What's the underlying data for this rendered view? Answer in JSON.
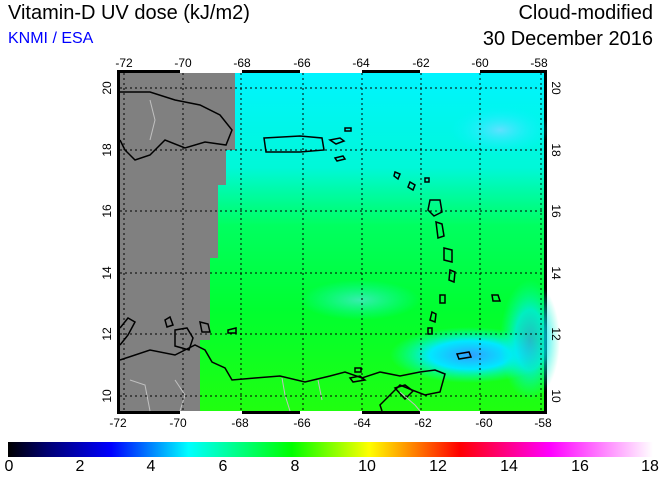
{
  "header": {
    "title": "Vitamin-D UV dose (kJ/m2)",
    "organization": "KNMI / ESA",
    "mode": "Cloud-modified",
    "date": "30 December 2016"
  },
  "map": {
    "lon_ticks": [
      "-72",
      "-70",
      "-68",
      "-66",
      "-64",
      "-62",
      "-60",
      "-58"
    ],
    "lat_ticks": [
      "20",
      "18",
      "16",
      "14",
      "12",
      "10"
    ],
    "lon_range": [
      -72.2,
      -57.8
    ],
    "lat_range": [
      9.5,
      20.5
    ],
    "no_data_color": "#808080"
  },
  "colorbar": {
    "labels": [
      "0",
      "2",
      "4",
      "6",
      "8",
      "10",
      "12",
      "14",
      "16",
      "18"
    ],
    "stops": [
      "#000000",
      "#000080",
      "#0000ff",
      "#00ffff",
      "#00ff00",
      "#ffff00",
      "#ff8000",
      "#ff0000",
      "#ff00ff",
      "#ffffff"
    ]
  }
}
